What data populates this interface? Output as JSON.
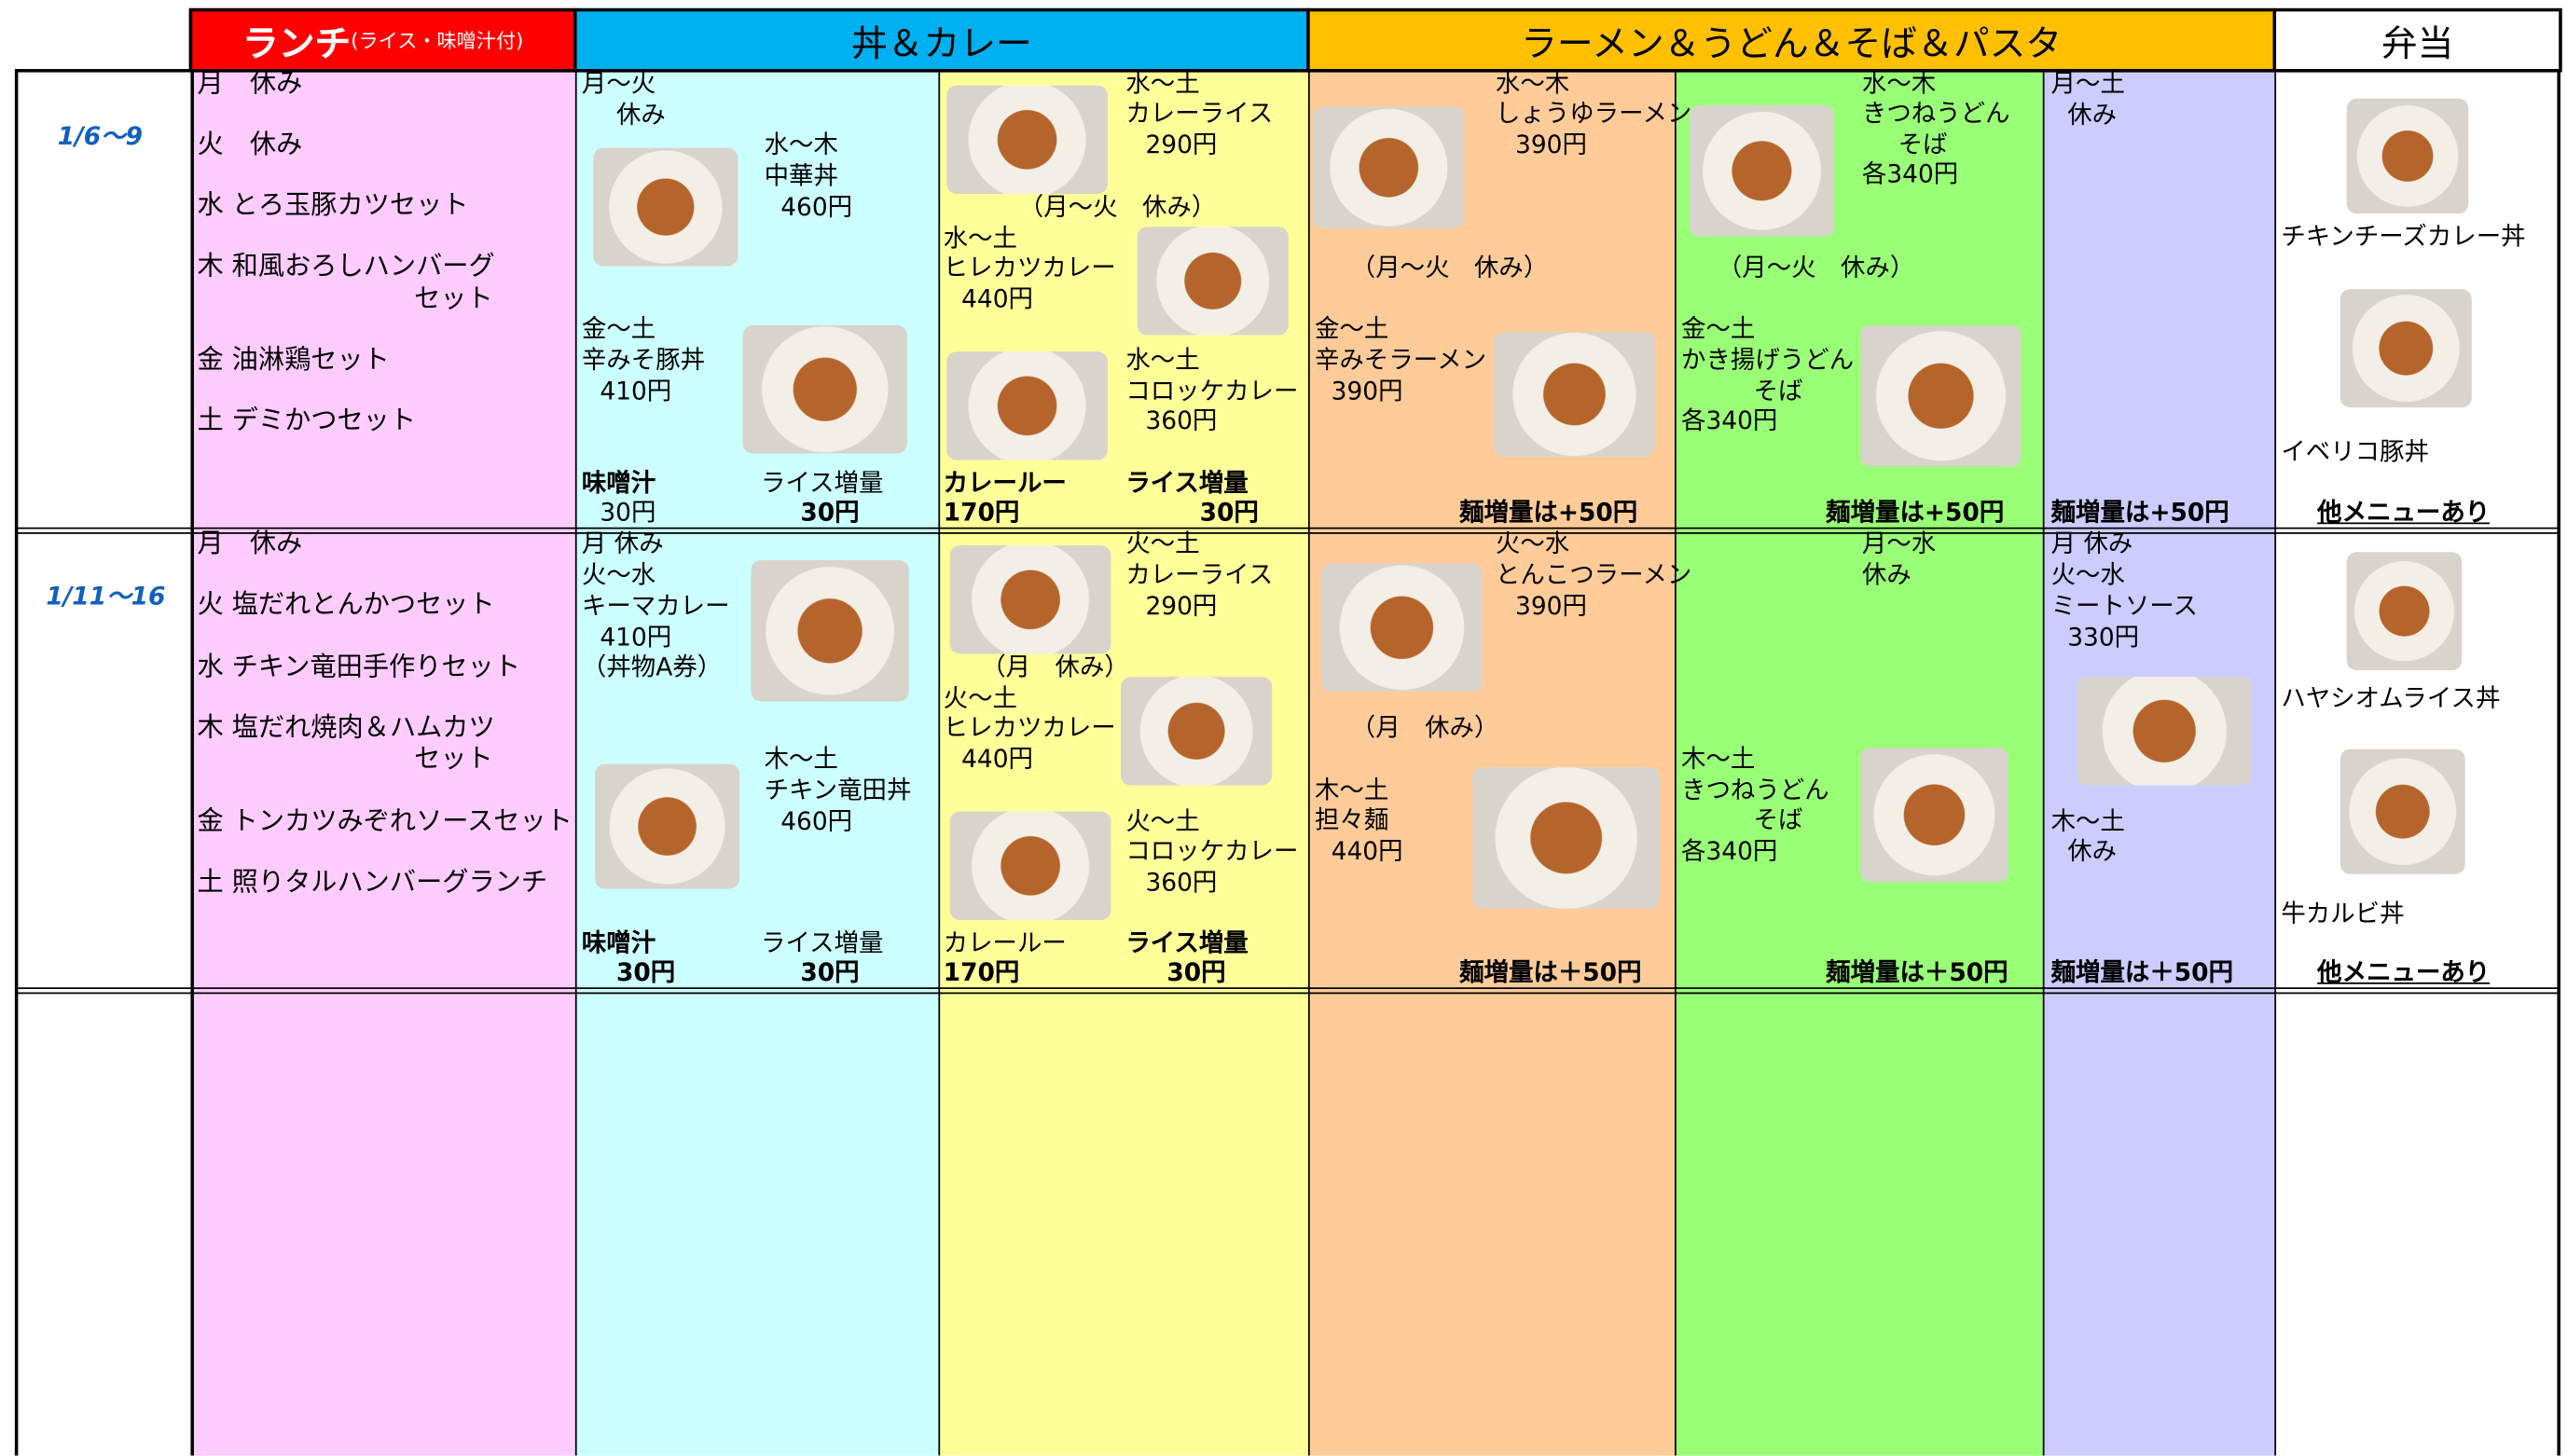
{
  "header": {
    "lunch": "ランチ",
    "lunch_note": "(ライス・味噌汁付)",
    "don_curry": "丼＆カレー",
    "noodles": "ラーメン＆うどん＆そば＆パスタ",
    "bento": "弁当"
  },
  "weeks": [
    {
      "dates": "1/6～9",
      "lunch": [
        "月　休み",
        "火　休み",
        "水 とろ玉豚カツセット",
        "木 和風おろしハンバーグ",
        "セット",
        "金 油淋鶏セット",
        "土 デミかつセット"
      ],
      "don": [
        "月～火",
        "休み",
        "水～木",
        "中華丼",
        "460円",
        "金～土",
        "辛みそ豚丼",
        "410円",
        "味噌汁",
        "30円",
        "ライス増量",
        "30円"
      ],
      "curry": [
        "水～土",
        "カレーライス",
        "290円",
        "（月～火　休み）",
        "水～土",
        "ヒレカツカレー",
        "440円",
        "水～土",
        "コロッケカレー",
        "360円",
        "カレールー",
        "170円",
        "ライス増量",
        "30円"
      ],
      "ramen": [
        "水～木",
        "しょうゆラーメン",
        "390円",
        "（月～火　休み）",
        "金～土",
        "辛みそラーメン",
        "390円",
        "麺増量は+50円"
      ],
      "udon": [
        "水～木",
        "きつねうどん",
        "そば",
        "各340円",
        "（月～火　休み）",
        "金～土",
        "かき揚げうどん",
        "そば",
        "各340円",
        "麺増量は+50円"
      ],
      "pasta": [
        "月～土",
        "休み",
        "麺増量は+50円"
      ],
      "bento": [
        "チキンチーズカレー丼",
        "イベリコ豚丼",
        "他メニューあり"
      ]
    },
    {
      "dates": "1/11～16",
      "lunch": [
        "月　休み",
        "火 塩だれとんかつセット",
        "水 チキン竜田手作りセット",
        "木 塩だれ焼肉＆ハムカツ",
        "セット",
        "金 トンカツみぞれソースセット",
        "土 照りタルハンバーグランチ"
      ],
      "don": [
        "月 休み",
        "火～水",
        "キーマカレー",
        "410円",
        "（丼物A券）",
        "木～土",
        "チキン竜田丼",
        "460円",
        "味噌汁",
        "30円",
        "ライス増量",
        "30円"
      ],
      "curry": [
        "火～土",
        "カレーライス",
        "290円",
        "（月　休み）",
        "火～土",
        "ヒレカツカレー",
        "440円",
        "火～土",
        "コロッケカレー",
        "360円",
        "カレールー",
        "170円",
        "ライス増量",
        "30円"
      ],
      "ramen": [
        "火～水",
        "とんこつラーメン",
        "390円",
        "（月　休み）",
        "木～土",
        "担々麺",
        "440円",
        "麺増量は＋50円"
      ],
      "udon": [
        "月～水",
        "休み",
        "木～土",
        "きつねうどん",
        "そば",
        "各340円",
        "麺増量は＋50円"
      ],
      "pasta": [
        "月 休み",
        "火～水",
        "ミートソース",
        "330円",
        "木～土",
        "休み",
        "麺増量は＋50円"
      ],
      "bento": [
        "ハヤシオムライス丼",
        "牛カルビ丼",
        "他メニューあり"
      ]
    }
  ]
}
